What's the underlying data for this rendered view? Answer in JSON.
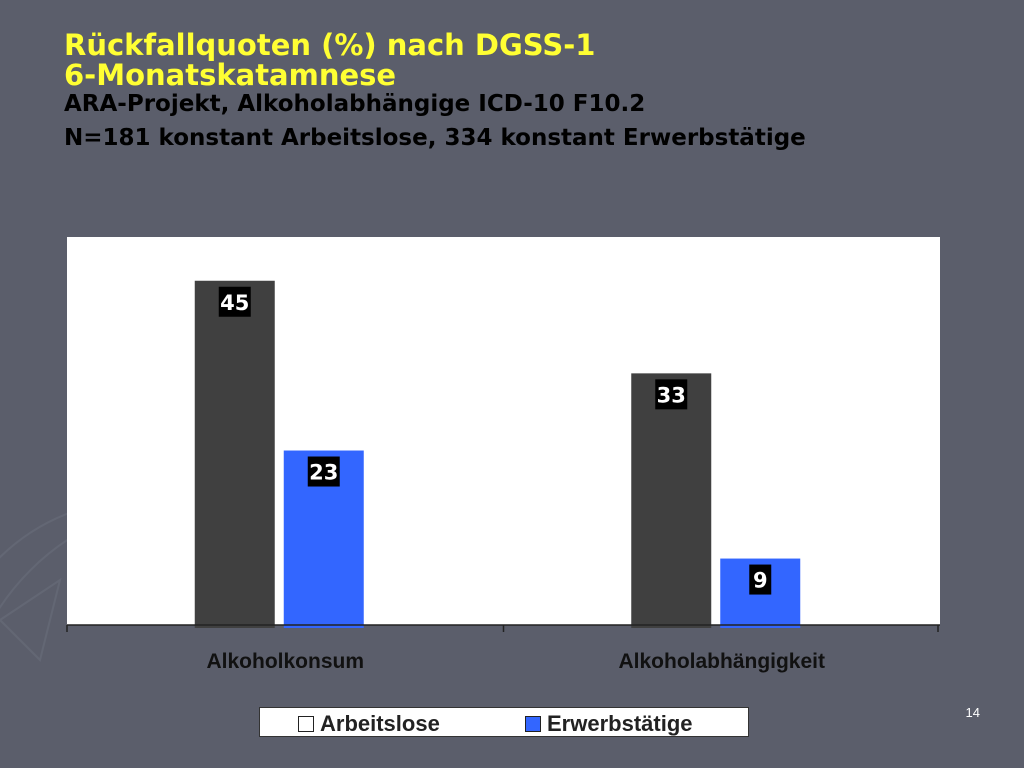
{
  "slide": {
    "title_line1": "Rückfallquoten (%) nach DGSS-1",
    "title_line2": "6-Monatskatamnese",
    "subtitle_line1": "ARA-Projekt, Alkoholabhängige ICD-10 F10.2",
    "subtitle_line2": "N=181 konstant Arbeitslose, 334 konstant Erwerbstätige",
    "page_number": "14"
  },
  "colors": {
    "background": "#5b5e6b",
    "title": "#ffff33",
    "series_arbeitslose": "#404040",
    "series_erwerbstaetige": "#3366ff",
    "legend_swatch_arbeitslose": "#ffffff"
  },
  "chart_data": {
    "type": "bar",
    "categories": [
      "Alkoholkonsum",
      "Alkoholabhängigkeit"
    ],
    "series": [
      {
        "name": "Arbeitslose",
        "values": [
          45,
          33
        ]
      },
      {
        "name": "Erwerbstätige",
        "values": [
          23,
          9
        ]
      }
    ],
    "ylim": [
      0,
      50
    ],
    "data_labels": true,
    "grid": false,
    "legend_position": "bottom"
  }
}
